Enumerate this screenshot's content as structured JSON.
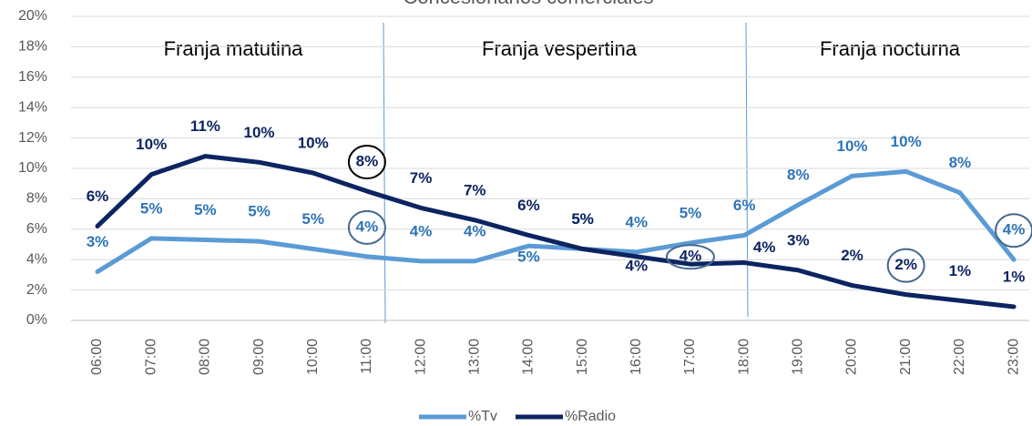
{
  "chart_data": {
    "type": "line",
    "title": "Concesionarios comerciales",
    "categories": [
      "06:00",
      "07:00",
      "08:00",
      "09:00",
      "10:00",
      "11:00",
      "12:00",
      "13:00",
      "14:00",
      "15:00",
      "16:00",
      "17:00",
      "18:00",
      "19:00",
      "20:00",
      "21:00",
      "22:00",
      "23:00"
    ],
    "series": [
      {
        "name": "%Tv",
        "color": "#5b9bd5",
        "values": [
          3.2,
          5.4,
          5.3,
          5.2,
          4.7,
          4.2,
          3.9,
          3.9,
          4.9,
          4.7,
          4.5,
          5.1,
          5.6,
          7.6,
          9.5,
          9.8,
          8.4,
          4.0
        ],
        "value_labels": [
          "3%",
          "5%",
          "5%",
          "5%",
          "5%",
          "4%",
          "4%",
          "4%",
          "5%",
          "5%",
          "4%",
          "5%",
          "6%",
          "8%",
          "10%",
          "10%",
          "8%",
          "4%"
        ]
      },
      {
        "name": "%Radio",
        "color": "#0c2461",
        "values": [
          6.2,
          9.6,
          10.8,
          10.4,
          9.7,
          8.5,
          7.4,
          6.6,
          5.6,
          4.7,
          4.2,
          3.7,
          3.8,
          3.3,
          2.3,
          1.7,
          1.3,
          0.9
        ],
        "value_labels": [
          "6%",
          "10%",
          "11%",
          "10%",
          "10%",
          "8%",
          "7%",
          "7%",
          "6%",
          "5%",
          "4%",
          "4%",
          "4%",
          "3%",
          "2%",
          "2%",
          "1%",
          "1%"
        ]
      }
    ],
    "ylim": [
      0,
      20
    ],
    "yticks": [
      {
        "value": 0,
        "label": "0%"
      },
      {
        "value": 2,
        "label": "2%"
      },
      {
        "value": 4,
        "label": "4%"
      },
      {
        "value": 6,
        "label": "6%"
      },
      {
        "value": 8,
        "label": "8%"
      },
      {
        "value": 10,
        "label": "10%"
      },
      {
        "value": 12,
        "label": "12%"
      },
      {
        "value": 14,
        "label": "14%"
      },
      {
        "value": 16,
        "label": "16%"
      },
      {
        "value": 18,
        "label": "18%"
      },
      {
        "value": 20,
        "label": "20%"
      }
    ],
    "grid": true,
    "annotations": [
      "Franja matutina",
      "Franja vespertina",
      "Franja nocturna"
    ],
    "legend": "bottom"
  }
}
